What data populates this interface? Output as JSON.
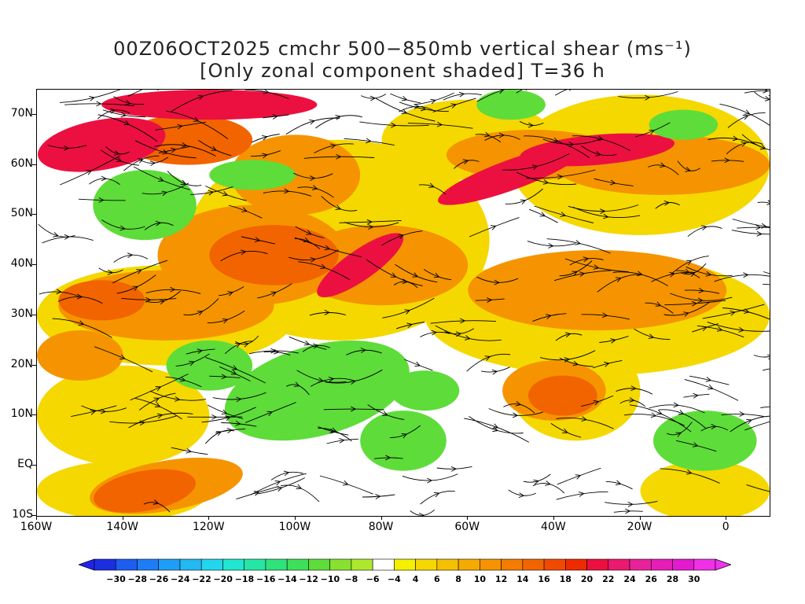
{
  "title": {
    "line1": "00Z06OCT2025 cmchr 500−850mb vertical shear (ms⁻¹)",
    "line2": "[Only zonal component shaded] T=36 h"
  },
  "axes": {
    "y_labels": [
      "70N",
      "60N",
      "50N",
      "40N",
      "30N",
      "20N",
      "10N",
      "EQ",
      "10S"
    ],
    "y_values": [
      70,
      60,
      50,
      40,
      30,
      20,
      10,
      0,
      -10
    ],
    "x_labels": [
      "160W",
      "140W",
      "120W",
      "100W",
      "80W",
      "60W",
      "40W",
      "20W",
      "0"
    ],
    "x_values": [
      -160,
      -140,
      -120,
      -100,
      -80,
      -60,
      -40,
      -20,
      0
    ],
    "lon_range": [
      -160,
      10
    ],
    "lat_range": [
      -10,
      75
    ]
  },
  "colorbar": {
    "labels": [
      "−30",
      "−28",
      "−26",
      "−24",
      "−22",
      "−20",
      "−18",
      "−16",
      "−14",
      "−12",
      "−10",
      "−8",
      "−6",
      "−4",
      "4",
      "6",
      "8",
      "10",
      "12",
      "14",
      "16",
      "18",
      "20",
      "22",
      "24",
      "26",
      "28",
      "30"
    ],
    "colors": [
      "#1b2fe0",
      "#1f5cf0",
      "#1e7df5",
      "#1f9ef7",
      "#22b8f2",
      "#22d6ee",
      "#22e6cf",
      "#26e6a6",
      "#2ee27c",
      "#3ee05a",
      "#5edc3a",
      "#88e030",
      "#aee82e",
      "#ffffff",
      "#f4f000",
      "#f5d800",
      "#f5c000",
      "#f5aa00",
      "#f59400",
      "#f47c00",
      "#f26400",
      "#f04a00",
      "#ee2a00",
      "#ec1040",
      "#ea1a70",
      "#e8229a",
      "#e61eb8",
      "#e41ad0",
      "#f030e6"
    ],
    "under_color": "#2222ee",
    "over_color": "#ee33ee"
  },
  "shading_legend": {
    "jet_color": "#ec1040",
    "strong_color": "#f26400",
    "moderate_color": "#f59400",
    "weak_color": "#f5d800",
    "easterly_color": "#5edc3a",
    "calm_color": "#ffffff"
  }
}
